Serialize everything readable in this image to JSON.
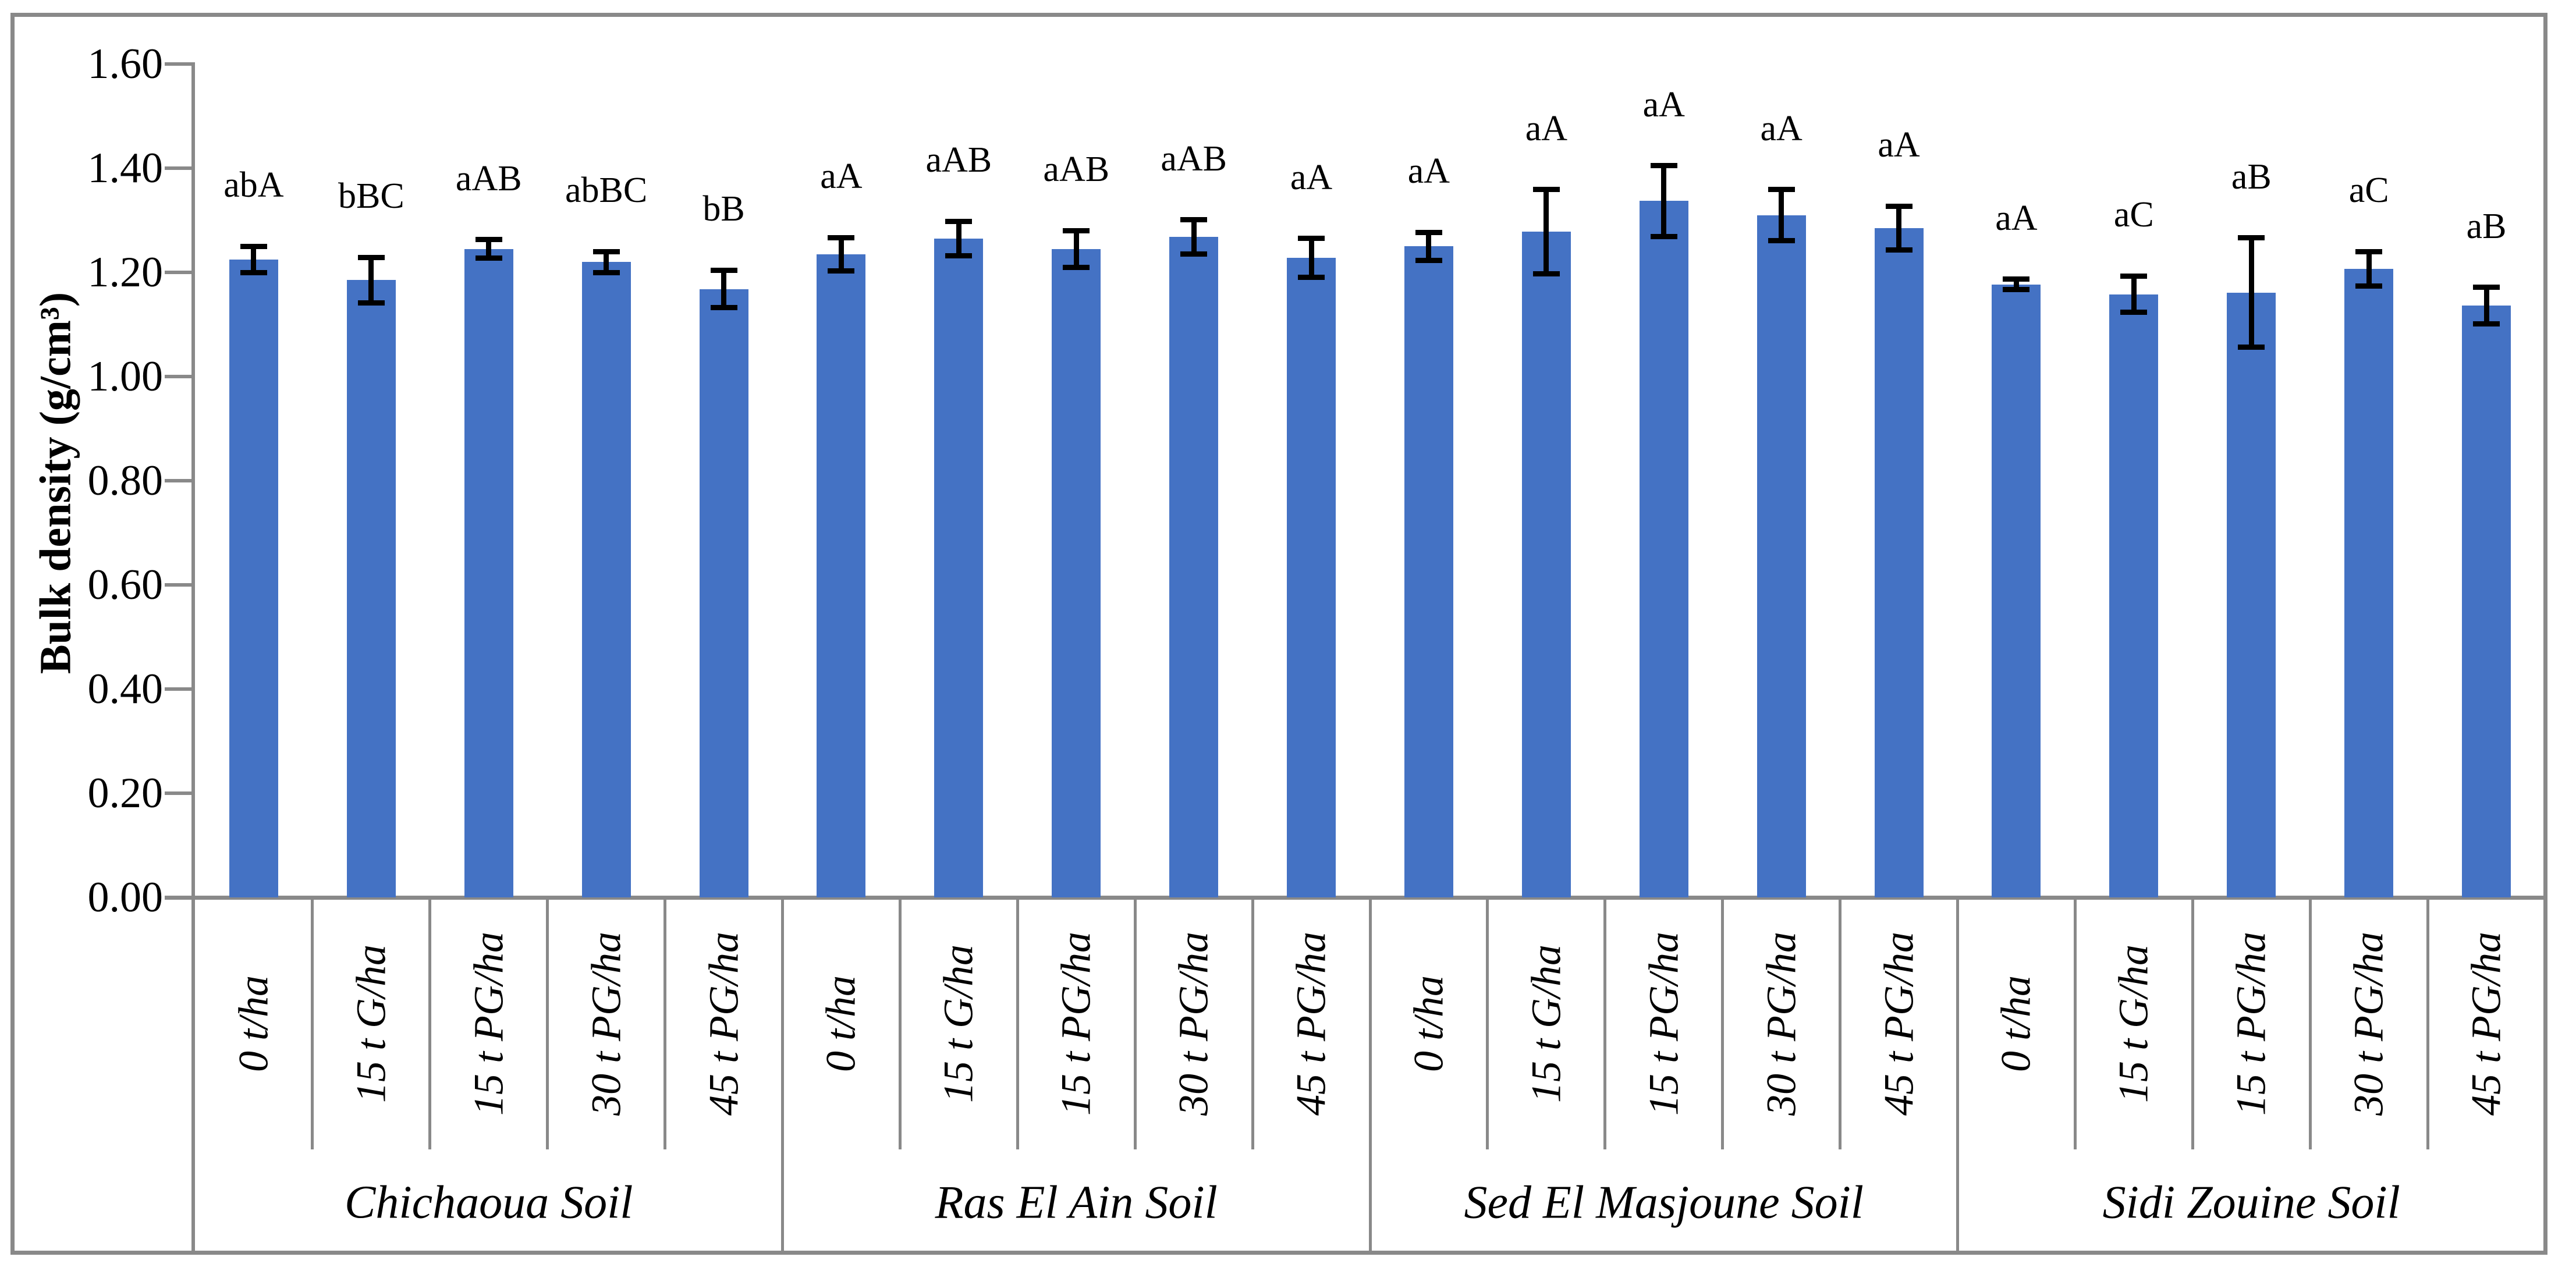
{
  "figure": {
    "bar_color": "#4472C4",
    "axis_color": "#898989",
    "error_bar_color": "#000000",
    "background_color": "#ffffff"
  },
  "chart_data": {
    "type": "bar",
    "title": "",
    "xlabel": "",
    "ylabel": "Bulk density (g/cm³)",
    "ylim": [
      0.0,
      1.6
    ],
    "ytick_step": 0.2,
    "ytick_labels": [
      "0.00",
      "0.20",
      "0.40",
      "0.60",
      "0.80",
      "1.00",
      "1.20",
      "1.40",
      "1.60"
    ],
    "grid": "off",
    "legend": "none",
    "error_bars": true,
    "treatments": [
      "0 t/ha",
      "15 t G/ha",
      "15 t PG/ha",
      "30 t PG/ha",
      "45 t PG/ha"
    ],
    "groups": [
      {
        "name": "Chichaoua Soil",
        "bars": [
          {
            "treatment": "0 t/ha",
            "value": 1.225,
            "error": 0.025,
            "letter": "abA"
          },
          {
            "treatment": "15 t G/ha",
            "value": 1.185,
            "error": 0.044,
            "letter": "bBC"
          },
          {
            "treatment": "15 t PG/ha",
            "value": 1.245,
            "error": 0.018,
            "letter": "aAB"
          },
          {
            "treatment": "30 t PG/ha",
            "value": 1.22,
            "error": 0.02,
            "letter": "abBC"
          },
          {
            "treatment": "45 t PG/ha",
            "value": 1.168,
            "error": 0.036,
            "letter": "bB"
          }
        ]
      },
      {
        "name": "Ras El Ain Soil",
        "bars": [
          {
            "treatment": "0 t/ha",
            "value": 1.235,
            "error": 0.032,
            "letter": "aA"
          },
          {
            "treatment": "15 t G/ha",
            "value": 1.265,
            "error": 0.033,
            "letter": "aAB"
          },
          {
            "treatment": "15 t PG/ha",
            "value": 1.245,
            "error": 0.035,
            "letter": "aAB"
          },
          {
            "treatment": "30 t PG/ha",
            "value": 1.268,
            "error": 0.033,
            "letter": "aAB"
          },
          {
            "treatment": "45 t PG/ha",
            "value": 1.228,
            "error": 0.037,
            "letter": "aA"
          }
        ]
      },
      {
        "name": "Sed El Masjoune Soil",
        "bars": [
          {
            "treatment": "0 t/ha",
            "value": 1.25,
            "error": 0.027,
            "letter": "aA"
          },
          {
            "treatment": "15 t G/ha",
            "value": 1.278,
            "error": 0.081,
            "letter": "aA"
          },
          {
            "treatment": "15 t PG/ha",
            "value": 1.337,
            "error": 0.068,
            "letter": "aA"
          },
          {
            "treatment": "30 t PG/ha",
            "value": 1.31,
            "error": 0.049,
            "letter": "aA"
          },
          {
            "treatment": "45 t PG/ha",
            "value": 1.285,
            "error": 0.042,
            "letter": "aA"
          }
        ]
      },
      {
        "name": "Sidi Zouine Soil",
        "bars": [
          {
            "treatment": "0 t/ha",
            "value": 1.177,
            "error": 0.01,
            "letter": "aA"
          },
          {
            "treatment": "15 t G/ha",
            "value": 1.158,
            "error": 0.035,
            "letter": "aC"
          },
          {
            "treatment": "15 t PG/ha",
            "value": 1.161,
            "error": 0.105,
            "letter": "aB"
          },
          {
            "treatment": "30 t PG/ha",
            "value": 1.207,
            "error": 0.033,
            "letter": "aC"
          },
          {
            "treatment": "45 t PG/ha",
            "value": 1.136,
            "error": 0.035,
            "letter": "aB"
          }
        ]
      }
    ]
  }
}
